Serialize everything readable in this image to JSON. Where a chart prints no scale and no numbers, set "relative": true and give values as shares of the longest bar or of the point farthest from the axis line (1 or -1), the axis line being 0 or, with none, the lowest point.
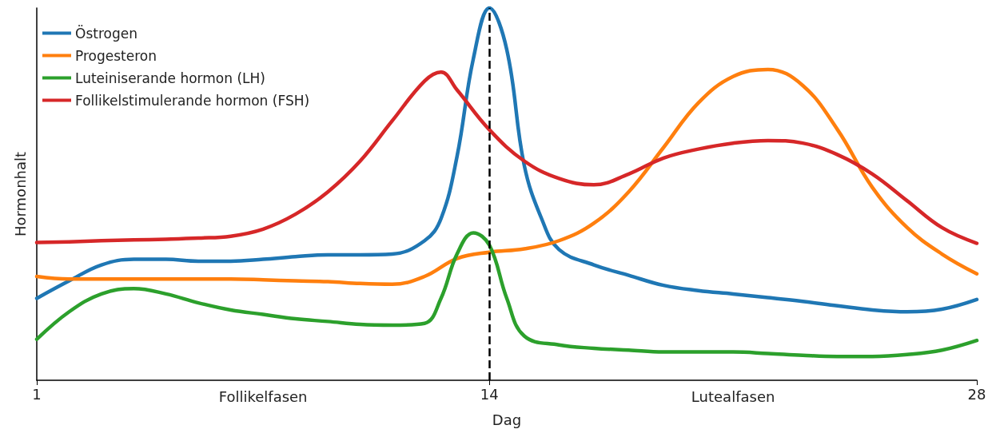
{
  "chart_data": {
    "type": "line",
    "relative": true,
    "xlabel": "Dag",
    "ylabel": "Hormonhalt",
    "xlim": [
      1,
      28
    ],
    "xticks": [
      1,
      14,
      28
    ],
    "grid": false,
    "legend": "top left",
    "marker": "none",
    "line_style": "solid",
    "annotations": [
      "Follikelfasen",
      "Lutealfasen"
    ],
    "ref_lines": [
      {
        "axis": "x",
        "value": 14,
        "label": null,
        "color": "#000000",
        "line_style": "dashed"
      }
    ],
    "series": [
      {
        "name": "Östrogen",
        "color": "#1f77b4",
        "x": [
          1,
          1.93,
          2.86,
          3.79,
          4.71,
          5.64,
          6.57,
          7.5,
          8.43,
          9.36,
          10.29,
          11.21,
          12.14,
          12.61,
          13.07,
          13.54,
          14,
          14.5,
          15,
          15.5,
          16,
          17,
          18,
          19,
          20,
          21,
          22,
          23,
          24,
          25,
          26,
          27,
          28
        ],
        "values": [
          0.22,
          0.267,
          0.31,
          0.325,
          0.325,
          0.32,
          0.32,
          0.325,
          0.332,
          0.337,
          0.337,
          0.339,
          0.375,
          0.434,
          0.601,
          0.864,
          1.0,
          0.888,
          0.578,
          0.434,
          0.351,
          0.31,
          0.282,
          0.255,
          0.241,
          0.232,
          0.222,
          0.212,
          0.2,
          0.189,
          0.184,
          0.191,
          0.217
        ]
      },
      {
        "name": "Progesteron",
        "color": "#ff7f0e",
        "x": [
          1,
          1.93,
          2.86,
          3.79,
          4.71,
          5.64,
          6.57,
          7.5,
          8.43,
          9.36,
          10.29,
          11.21,
          12.14,
          13.07,
          14,
          15,
          16,
          17,
          18,
          19,
          20,
          21,
          22,
          23,
          24,
          25,
          26,
          27,
          28
        ],
        "values": [
          0.279,
          0.272,
          0.272,
          0.272,
          0.272,
          0.272,
          0.272,
          0.27,
          0.267,
          0.265,
          0.26,
          0.258,
          0.279,
          0.327,
          0.344,
          0.353,
          0.375,
          0.422,
          0.506,
          0.625,
          0.745,
          0.816,
          0.835,
          0.792,
          0.673,
          0.518,
          0.41,
          0.339,
          0.286
        ]
      },
      {
        "name": "Luteiniserande hormon (LH)",
        "color": "#2ca02c",
        "x": [
          1,
          1.93,
          2.86,
          3.79,
          4.71,
          5.64,
          6.57,
          7.5,
          8.43,
          9.36,
          10.29,
          11.21,
          12.14,
          12.61,
          13.07,
          13.54,
          14,
          14.5,
          15,
          16,
          17,
          18,
          19,
          20,
          21,
          22,
          23,
          24,
          25,
          26,
          27,
          28
        ],
        "values": [
          0.11,
          0.184,
          0.232,
          0.246,
          0.232,
          0.208,
          0.189,
          0.177,
          0.165,
          0.158,
          0.15,
          0.148,
          0.153,
          0.22,
          0.339,
          0.396,
          0.363,
          0.22,
          0.119,
          0.095,
          0.086,
          0.081,
          0.076,
          0.076,
          0.076,
          0.072,
          0.067,
          0.064,
          0.064,
          0.069,
          0.081,
          0.107
        ]
      },
      {
        "name": "Follikelstimulerande hormon (FSH)",
        "color": "#d62728",
        "x": [
          1,
          1.93,
          2.86,
          3.79,
          4.71,
          5.64,
          6.57,
          7.5,
          8.43,
          9.36,
          10.29,
          11.21,
          12.14,
          12.61,
          13.07,
          14,
          15,
          16,
          17,
          18,
          19,
          20,
          21,
          22,
          23,
          24,
          25,
          26,
          27,
          28
        ],
        "values": [
          0.37,
          0.372,
          0.375,
          0.377,
          0.379,
          0.382,
          0.387,
          0.406,
          0.446,
          0.506,
          0.589,
          0.697,
          0.804,
          0.828,
          0.78,
          0.673,
          0.589,
          0.542,
          0.525,
          0.554,
          0.597,
          0.621,
          0.637,
          0.644,
          0.637,
          0.606,
          0.554,
          0.482,
          0.41,
          0.368
        ]
      }
    ]
  }
}
